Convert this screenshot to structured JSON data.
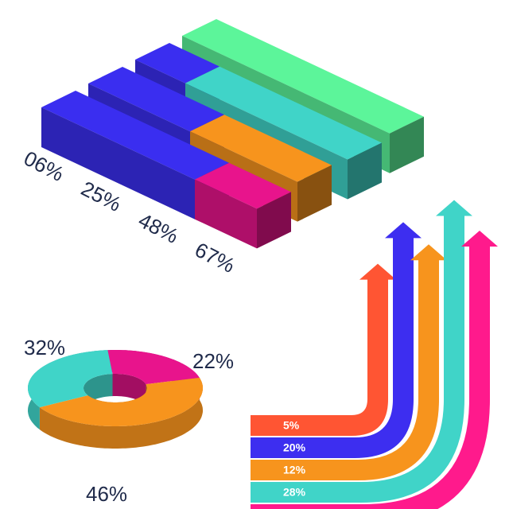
{
  "chart_data": [
    {
      "type": "isometric-bar",
      "values": [
        6,
        25,
        48,
        67
      ],
      "value_labels": [
        "06%",
        "25%",
        "48%",
        "67%"
      ],
      "colors": [
        "#e8148c",
        "#f7941d",
        "#40d4c8",
        "#5cf59a"
      ],
      "base_color": "#3a2ef0"
    },
    {
      "type": "donut",
      "values": [
        22,
        46,
        32
      ],
      "value_labels": [
        "22%",
        "46%",
        "32%"
      ],
      "colors": [
        "#e8148c",
        "#f7941d",
        "#40d4c8"
      ]
    },
    {
      "type": "arrow",
      "values": [
        5,
        20,
        12,
        28
      ],
      "value_labels": [
        "5%",
        "20%",
        "12%",
        "28%"
      ],
      "colors": [
        "#ff5533",
        "#3d2ef0",
        "#f7941d",
        "#40d4c8"
      ]
    }
  ]
}
